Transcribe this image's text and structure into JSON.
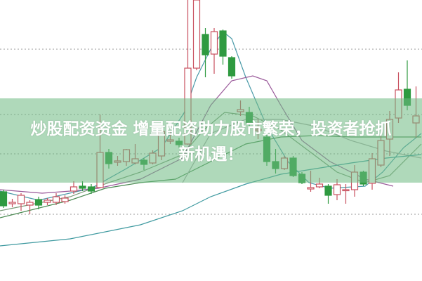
{
  "headline": {
    "line1": "炒股配资资金 增量配资助力股市繁荣，投资者抢抓",
    "line2": "新机遇！"
  },
  "chart_data": {
    "type": "candlestick",
    "ylim": [
      0,
      40
    ],
    "grid": "horizontal dotted",
    "grid_levels": [
      9.5,
      18.1,
      23.7,
      33.0
    ],
    "colors": {
      "up": "#c8505f",
      "down": "#2f9a40",
      "banner": "#6eb982"
    },
    "candles": [
      [
        12.7,
        10.7,
        13.0,
        10.4
      ],
      [
        11.0,
        11.2,
        11.7,
        10.5
      ],
      [
        11.0,
        12.2,
        12.5,
        10.0
      ],
      [
        10.8,
        11.2,
        11.5,
        9.5
      ],
      [
        11.6,
        10.8,
        12.0,
        10.2
      ],
      [
        11.2,
        11.5,
        11.8,
        10.8
      ],
      [
        11.2,
        12.0,
        12.5,
        10.8
      ],
      [
        11.3,
        11.8,
        12.2,
        11.0
      ],
      [
        12.8,
        13.4,
        14.2,
        12.4
      ],
      [
        13.5,
        13.2,
        14.2,
        12.8
      ],
      [
        13.4,
        12.8,
        13.8,
        12.4
      ],
      [
        13.3,
        18.3,
        23.7,
        13.2
      ],
      [
        18.3,
        16.7,
        18.8,
        16.0
      ],
      [
        16.9,
        17.1,
        17.8,
        16.4
      ],
      [
        17.0,
        18.7,
        18.8,
        16.4
      ],
      [
        16.8,
        17.4,
        19.5,
        16.6
      ],
      [
        17.2,
        16.6,
        17.5,
        15.8
      ],
      [
        16.8,
        18.2,
        18.6,
        16.6
      ],
      [
        17.8,
        21.3,
        22.0,
        17.2
      ],
      [
        19.9,
        20.1,
        21.2,
        19.5
      ],
      [
        19.9,
        19.4,
        20.4,
        19.0
      ],
      [
        19.5,
        30.3,
        40.0,
        19.4
      ],
      [
        30.3,
        40.0,
        40.0,
        30.0
      ],
      [
        35.1,
        32.2,
        36.0,
        29.0
      ],
      [
        32.3,
        35.5,
        36.0,
        29.5
      ],
      [
        35.6,
        32.0,
        35.8,
        30.8
      ],
      [
        31.8,
        29.2,
        32.0,
        28.8
      ],
      [
        24.1,
        24.4,
        25.7,
        23.5
      ],
      [
        24.0,
        22.5,
        24.8,
        22.0
      ],
      [
        21.4,
        21.6,
        23.0,
        20.2
      ],
      [
        20.5,
        17.0,
        20.8,
        16.4
      ],
      [
        17.0,
        16.0,
        18.8,
        15.3
      ],
      [
        16.0,
        17.5,
        17.8,
        15.8
      ],
      [
        17.5,
        15.0,
        17.8,
        14.8
      ],
      [
        15.2,
        14.0,
        15.5,
        13.8
      ],
      [
        13.1,
        13.3,
        15.7,
        12.7
      ],
      [
        13.4,
        13.8,
        14.7,
        13.2
      ],
      [
        13.5,
        12.2,
        13.8,
        11.0
      ],
      [
        12.3,
        13.7,
        14.5,
        11.5
      ],
      [
        13.0,
        13.0,
        13.8,
        11.0
      ],
      [
        13.0,
        15.5,
        16.5,
        12.0
      ],
      [
        15.5,
        13.8,
        15.7,
        13.5
      ],
      [
        13.9,
        17.4,
        18.2,
        13.0
      ],
      [
        16.5,
        20.0,
        20.7,
        16.2
      ],
      [
        20.2,
        23.0,
        24.2,
        17.8
      ],
      [
        23.2,
        27.2,
        29.7,
        22.5
      ],
      [
        27.3,
        25.0,
        31.4,
        24.3
      ],
      [
        22.5,
        23.5,
        27.7,
        20.4
      ]
    ],
    "candle_fields": [
      "open",
      "close",
      "high",
      "low"
    ],
    "moving_averages": [
      {
        "color": "#4a9aa8",
        "points": [
          [
            -0.4,
            12.8
          ],
          [
            4,
            11.5
          ],
          [
            10,
            13.2
          ],
          [
            14,
            16.0
          ],
          [
            18,
            19.0
          ],
          [
            20.6,
            24.0
          ],
          [
            22,
            29.0
          ],
          [
            23.6,
            33.0
          ],
          [
            25,
            35.5
          ],
          [
            26,
            34.5
          ],
          [
            27.6,
            29.0
          ],
          [
            30,
            22.0
          ],
          [
            32.4,
            17.0
          ],
          [
            34.8,
            14.0
          ],
          [
            37.2,
            13.2
          ],
          [
            41.2,
            13.5
          ],
          [
            43.2,
            15.5
          ],
          [
            45.6,
            19.0
          ],
          [
            47.6,
            21.0
          ]
        ]
      },
      {
        "color": "#7a9a78",
        "points": [
          [
            -0.4,
            10.0
          ],
          [
            7.6,
            12.0
          ],
          [
            10.8,
            13.5
          ],
          [
            15.6,
            15.5
          ],
          [
            20.4,
            18.0
          ],
          [
            22.8,
            21.5
          ],
          [
            25.2,
            24.0
          ],
          [
            28.4,
            23.5
          ],
          [
            31.6,
            21.5
          ],
          [
            34.8,
            18.5
          ],
          [
            38,
            15.5
          ],
          [
            41.2,
            14.0
          ],
          [
            44,
            15.0
          ],
          [
            47.6,
            19.5
          ]
        ]
      },
      {
        "color": "#9a5a9a",
        "points": [
          [
            -0.4,
            13.0
          ],
          [
            4.4,
            12.5
          ],
          [
            7.6,
            12.8
          ],
          [
            10.8,
            13.2
          ],
          [
            15.6,
            14.5
          ],
          [
            20.4,
            17.5
          ],
          [
            23.6,
            25.0
          ],
          [
            26,
            28.5
          ],
          [
            28.4,
            29.2
          ],
          [
            30,
            28.5
          ],
          [
            31.6,
            25.0
          ],
          [
            34,
            20.0
          ],
          [
            37.2,
            17.0
          ],
          [
            41.2,
            14.5
          ],
          [
            44.4,
            13.5
          ]
        ]
      },
      {
        "color": "#4a8a52",
        "points": [
          [
            -0.4,
            9.0
          ],
          [
            7.6,
            11.5
          ],
          [
            11.6,
            13.2
          ],
          [
            15.6,
            14.0
          ],
          [
            19.6,
            14.5
          ],
          [
            23.6,
            17.0
          ],
          [
            27.6,
            19.5
          ],
          [
            31.6,
            20.5
          ],
          [
            35.6,
            20.7
          ],
          [
            39.6,
            20.5
          ],
          [
            47.6,
            20.5
          ]
        ]
      },
      {
        "color": "#a8a8a8",
        "points": [
          [
            20.4,
            14.0
          ],
          [
            23.6,
            21.0
          ],
          [
            27.6,
            23.0
          ],
          [
            31.6,
            23.0
          ],
          [
            35.6,
            22.0
          ],
          [
            39.6,
            20.0
          ],
          [
            43.6,
            18.5
          ],
          [
            47.6,
            17.5
          ]
        ]
      },
      {
        "color": "#3f9aa0",
        "points": [
          [
            -0.4,
            5.0
          ],
          [
            7.6,
            6.0
          ],
          [
            15.6,
            8.0
          ],
          [
            20.4,
            10.0
          ],
          [
            23.6,
            12.0
          ],
          [
            27.6,
            13.8
          ],
          [
            31.6,
            15.2
          ],
          [
            35.6,
            16.0
          ],
          [
            39.6,
            16.8
          ],
          [
            43.6,
            17.5
          ],
          [
            47.6,
            18.0
          ]
        ]
      }
    ]
  }
}
